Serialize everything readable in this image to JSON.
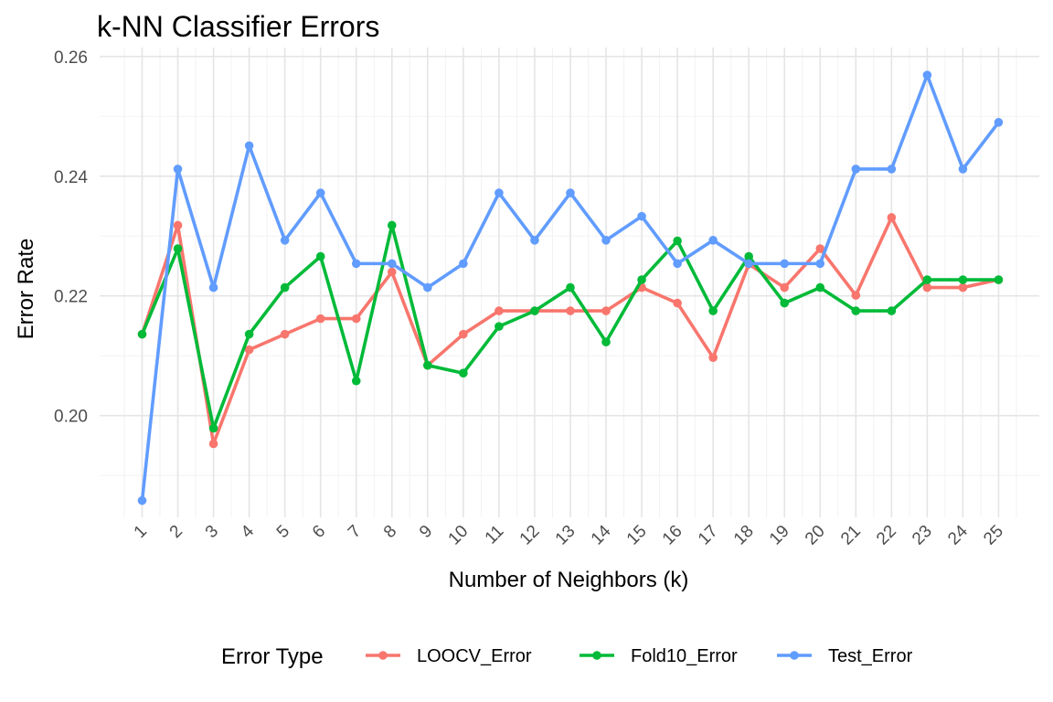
{
  "chart_data": {
    "type": "line",
    "title": "k-NN Classifier Errors",
    "xlabel": "Number of Neighbors (k)",
    "ylabel": "Error Rate",
    "x": [
      1,
      2,
      3,
      4,
      5,
      6,
      7,
      8,
      9,
      10,
      11,
      12,
      13,
      14,
      15,
      16,
      17,
      18,
      19,
      20,
      21,
      22,
      23,
      24,
      25
    ],
    "ylim": [
      0.183,
      0.2615
    ],
    "yticks": [
      0.2,
      0.22,
      0.24,
      0.26
    ],
    "ytick_labels": [
      "0.20",
      "0.22",
      "0.24",
      "0.26"
    ],
    "grid": true,
    "legend": {
      "title": "Error Type",
      "position": "bottom"
    },
    "series": [
      {
        "name": "LOOCV_Error",
        "color": "#F8766D",
        "values": [
          0.2136,
          0.2318,
          0.1953,
          0.211,
          0.2136,
          0.2162,
          0.2162,
          0.224,
          0.2084,
          0.2136,
          0.2175,
          0.2175,
          0.2175,
          0.2175,
          0.2214,
          0.2188,
          0.2097,
          0.2253,
          0.2214,
          0.2279,
          0.2201,
          0.2331,
          0.2214,
          0.2214,
          0.2227
        ]
      },
      {
        "name": "Fold10_Error",
        "color": "#00BA38",
        "values": [
          0.2136,
          0.2279,
          0.1979,
          0.2136,
          0.2214,
          0.2266,
          0.2058,
          0.2318,
          0.2084,
          0.2071,
          0.2149,
          0.2175,
          0.2214,
          0.2123,
          0.2227,
          0.2292,
          0.2175,
          0.2266,
          0.2188,
          0.2214,
          0.2175,
          0.2175,
          0.2227,
          0.2227,
          0.2227
        ]
      },
      {
        "name": "Test_Error",
        "color": "#619CFF",
        "values": [
          0.1858,
          0.2412,
          0.2214,
          0.2451,
          0.2293,
          0.2372,
          0.2254,
          0.2254,
          0.2214,
          0.2254,
          0.2372,
          0.2293,
          0.2372,
          0.2293,
          0.2333,
          0.2254,
          0.2293,
          0.2254,
          0.2254,
          0.2254,
          0.2412,
          0.2412,
          0.2569,
          0.2412,
          0.249
        ]
      }
    ]
  }
}
